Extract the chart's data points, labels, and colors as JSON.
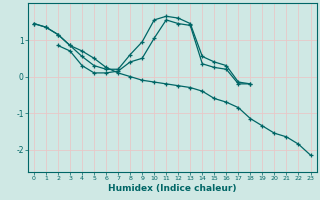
{
  "xlabel": "Humidex (Indice chaleur)",
  "ylabel": "",
  "background_color": "#cfe8e4",
  "grid_color_v": "#e8c8c8",
  "grid_color_h": "#e8c8c8",
  "line_color": "#006666",
  "xlim": [
    -0.5,
    23.5
  ],
  "ylim": [
    -2.6,
    2.0
  ],
  "yticks": [
    -2,
    -1,
    0,
    1
  ],
  "xticks": [
    0,
    1,
    2,
    3,
    4,
    5,
    6,
    7,
    8,
    9,
    10,
    11,
    12,
    13,
    14,
    15,
    16,
    17,
    18,
    19,
    20,
    21,
    22,
    23
  ],
  "series": [
    {
      "x": [
        0,
        1,
        2,
        3,
        4,
        5,
        6,
        7,
        8,
        9,
        10,
        11,
        12,
        13,
        14,
        15,
        16,
        17,
        18
      ],
      "y": [
        1.45,
        1.35,
        1.15,
        0.85,
        0.55,
        0.3,
        0.2,
        0.2,
        0.6,
        0.95,
        1.55,
        1.65,
        1.6,
        1.45,
        0.55,
        0.4,
        0.3,
        -0.15,
        -0.2
      ]
    },
    {
      "x": [
        0,
        1,
        2,
        3,
        4,
        5,
        6,
        7,
        8,
        9,
        10,
        11,
        12,
        13,
        14,
        15,
        16,
        17,
        18,
        19,
        20,
        21,
        22,
        23
      ],
      "y": [
        1.45,
        1.35,
        1.15,
        0.85,
        0.7,
        0.5,
        0.25,
        0.1,
        0.0,
        -0.1,
        -0.15,
        -0.2,
        -0.25,
        -0.3,
        -0.4,
        -0.6,
        -0.7,
        -0.85,
        -1.15,
        -1.35,
        -1.55,
        -1.65,
        -1.85,
        -2.15
      ]
    },
    {
      "x": [
        2,
        3,
        4,
        5,
        6,
        7,
        8,
        9,
        10,
        11,
        12,
        13,
        14,
        15,
        16,
        17,
        18
      ],
      "y": [
        0.85,
        0.7,
        0.3,
        0.1,
        0.1,
        0.15,
        0.4,
        0.5,
        1.05,
        1.55,
        1.45,
        1.4,
        0.35,
        0.25,
        0.2,
        -0.2,
        -0.2
      ]
    }
  ]
}
